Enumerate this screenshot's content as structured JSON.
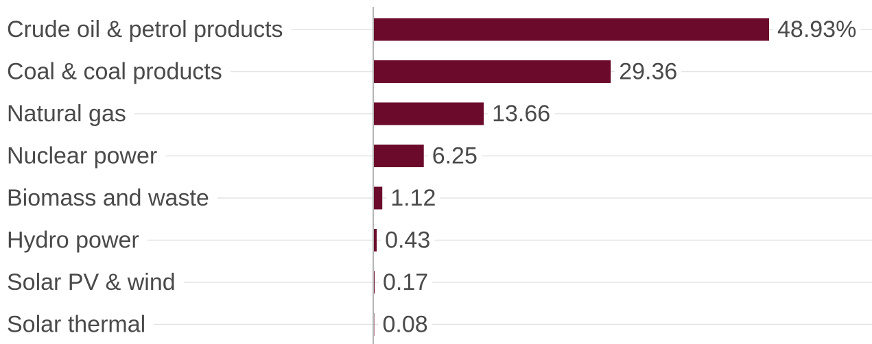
{
  "chart_data": {
    "type": "bar",
    "orientation": "horizontal",
    "categories": [
      "Crude oil & petrol products",
      "Coal & coal products",
      "Natural gas",
      "Nuclear power",
      "Biomass and waste",
      "Hydro power",
      "Solar PV & wind",
      "Solar thermal"
    ],
    "values": [
      48.93,
      29.36,
      13.66,
      6.25,
      1.12,
      0.43,
      0.17,
      0.08
    ],
    "value_labels": [
      "48.93%",
      "29.36",
      "13.66",
      "6.25",
      "1.12",
      "0.43",
      "0.17",
      "0.08"
    ],
    "xlim": [
      0,
      50
    ],
    "title": "",
    "xlabel": "",
    "ylabel": "",
    "grid": true,
    "legend": "none",
    "colors": {
      "bar": "#6b0a2b",
      "gridline": "#e3e3e3",
      "axis": "#b5b5b5",
      "text": "#4a4a4a"
    }
  }
}
